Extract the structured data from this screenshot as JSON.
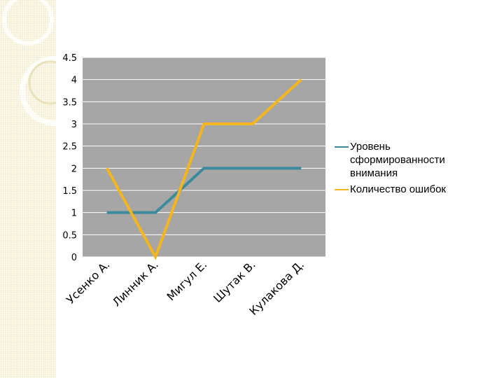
{
  "chart_data": {
    "type": "line",
    "categories": [
      "Усенко А.",
      "Линник А.",
      "Мигул Е.",
      "Шутак В.",
      "Кулакова Д."
    ],
    "series": [
      {
        "name": "Уровень сформированности внимания",
        "values": [
          1,
          1,
          2,
          2,
          2
        ],
        "color": "#3c8a9c"
      },
      {
        "name": "Количество ошибок",
        "values": [
          2,
          0,
          3,
          3,
          4
        ],
        "color": "#f5b51e"
      }
    ],
    "ylim": [
      0,
      4.5
    ],
    "yticks": [
      "0",
      "0.5",
      "1",
      "1.5",
      "2",
      "2.5",
      "3",
      "3.5",
      "4",
      "4.5"
    ],
    "yticks_values": [
      0,
      0.5,
      1,
      1.5,
      2,
      2.5,
      3,
      3.5,
      4,
      4.5
    ],
    "grid": true,
    "legend_position": "right",
    "plot_bg": "#a6a6a6"
  }
}
